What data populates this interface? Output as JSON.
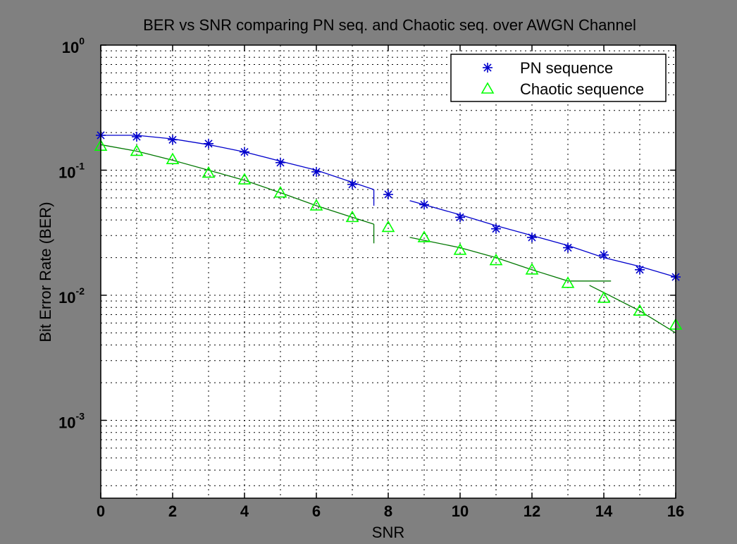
{
  "chart_data": {
    "type": "scatter",
    "title": "BER vs SNR comparing PN seq. and Chaotic seq. over AWGN Channel",
    "xlabel": "SNR",
    "ylabel": "Bit Error Rate (BER)",
    "xlim": [
      0,
      16
    ],
    "ylim": [
      0.00025,
      1
    ],
    "yscale": "log",
    "grid": true,
    "legend_position": "top-right",
    "x_ticks": [
      "0",
      "2",
      "4",
      "6",
      "8",
      "10",
      "12",
      "14",
      "16"
    ],
    "y_ticks": [
      {
        "base": "10",
        "exp": "0"
      },
      {
        "base": "10",
        "exp": "-1"
      },
      {
        "base": "10",
        "exp": "-2"
      },
      {
        "base": "10",
        "exp": "-3"
      }
    ],
    "series": [
      {
        "name": "PN sequence",
        "marker": "asterisk",
        "color": "#0000cc",
        "x": [
          0,
          1,
          2,
          3,
          4,
          5,
          6,
          7,
          8,
          9,
          10,
          11,
          12,
          13,
          14,
          15,
          16
        ],
        "y": [
          0.19,
          0.185,
          0.175,
          0.163,
          0.14,
          0.115,
          0.097,
          0.077,
          0.064,
          0.053,
          0.042,
          0.034,
          0.029,
          0.024,
          0.021,
          0.016,
          0.014
        ]
      },
      {
        "name": "Chaotic sequence",
        "marker": "triangle",
        "color": "#00ff00",
        "x": [
          0,
          1,
          2,
          3,
          4,
          5,
          6,
          7,
          8,
          9,
          10,
          11,
          12,
          13,
          14,
          15,
          16
        ],
        "y": [
          0.156,
          0.142,
          0.122,
          0.095,
          0.084,
          0.066,
          0.052,
          0.042,
          0.035,
          0.029,
          0.023,
          0.019,
          0.016,
          0.0125,
          0.0095,
          0.0075,
          0.0058
        ]
      }
    ],
    "fit_curves": [
      {
        "color": "#0000cc",
        "x": [
          0,
          1,
          2,
          3,
          4,
          5,
          6,
          7,
          7.6
        ],
        "y": [
          0.19,
          0.19,
          0.178,
          0.16,
          0.14,
          0.118,
          0.1,
          0.08,
          0.07
        ]
      },
      {
        "color": "#0000cc",
        "x": [
          7.6,
          7.6
        ],
        "y": [
          0.07,
          0.052
        ]
      },
      {
        "color": "#0000cc",
        "x": [
          8.6,
          10,
          11,
          12,
          13,
          14,
          15,
          16
        ],
        "y": [
          0.057,
          0.044,
          0.036,
          0.03,
          0.025,
          0.02,
          0.017,
          0.014
        ]
      },
      {
        "color": "#007700",
        "x": [
          0,
          1,
          2,
          3,
          4,
          5,
          6,
          7,
          7.6
        ],
        "y": [
          0.16,
          0.142,
          0.12,
          0.1,
          0.083,
          0.066,
          0.052,
          0.042,
          0.037
        ]
      },
      {
        "color": "#007700",
        "x": [
          7.6,
          7.6
        ],
        "y": [
          0.037,
          0.026
        ]
      },
      {
        "color": "#007700",
        "x": [
          8.6,
          10,
          11,
          12,
          13,
          14.2
        ],
        "y": [
          0.029,
          0.024,
          0.02,
          0.016,
          0.013,
          0.013
        ]
      },
      {
        "color": "#007700",
        "x": [
          13.6,
          14,
          15,
          16
        ],
        "y": [
          0.012,
          0.0105,
          0.0075,
          0.005
        ]
      }
    ]
  }
}
